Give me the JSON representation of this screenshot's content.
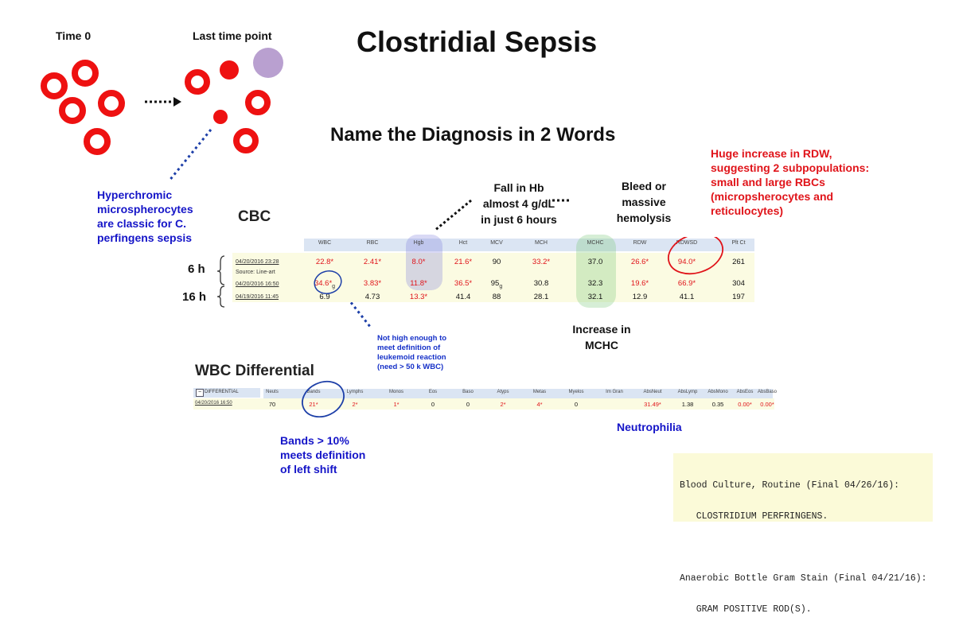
{
  "title": "Clostridial Sepsis",
  "subtitle": "Name the Diagnosis in 2 Words",
  "time_labels": {
    "start": "Time 0",
    "end": "Last time point"
  },
  "notes": {
    "hyperchromic": [
      "Hyperchromic",
      "microspherocytes",
      "are classic for C.",
      "perfingens sepsis"
    ],
    "hb_fall": [
      "Fall in Hb",
      "almost 4 g/dL",
      "in just 6 hours"
    ],
    "bleed": [
      "Bleed or",
      "massive",
      "hemolysis"
    ],
    "rdw": [
      "Huge increase in RDW,",
      "suggesting 2 subpopulations:",
      "small and large RBCs",
      "(micropsherocytes and",
      "reticulocytes)"
    ],
    "mchc": [
      "Increase in",
      "MCHC"
    ],
    "leukemoid": [
      "Not high enough to",
      "meet definition of",
      "leukemoid reaction",
      "(need > 50 k WBC)"
    ],
    "bands": [
      "Bands > 10%",
      "meets definition",
      "of left shift"
    ],
    "neutrophilia": "Neutrophilia"
  },
  "cbc": {
    "section_label": "CBC",
    "row_labels": [
      "6 h",
      "16 h"
    ],
    "headers": [
      "WBC",
      "RBC",
      "Hgb",
      "Hct",
      "MCV",
      "MCH",
      "MCHC",
      "RDW",
      "RDWSD",
      "Plt Ct"
    ],
    "rows": [
      {
        "datetime": "04/20/2016 23:28",
        "source": "Source: Line-art",
        "values": [
          "22.8*",
          "2.41*",
          "8.0*",
          "21.6*",
          "90",
          "33.2*",
          "37.0",
          "26.6*",
          "94.0*",
          "261"
        ],
        "flags": [
          true,
          true,
          true,
          true,
          false,
          true,
          false,
          true,
          true,
          false
        ]
      },
      {
        "datetime": "04/20/2016 16:50",
        "values": [
          "34.6*",
          "3.83*",
          "11.8*",
          "36.5*",
          "95",
          "30.8",
          "32.3",
          "19.6*",
          "66.9*",
          "304"
        ],
        "flags": [
          true,
          true,
          true,
          true,
          false,
          false,
          false,
          true,
          true,
          false
        ]
      },
      {
        "datetime": "04/19/2016 11:45",
        "values": [
          "6.9",
          "4.73",
          "13.3*",
          "41.4",
          "88",
          "28.1",
          "32.1",
          "12.9",
          "41.1",
          "197"
        ],
        "flags": [
          false,
          false,
          true,
          false,
          false,
          false,
          false,
          false,
          false,
          false
        ]
      }
    ],
    "marks": {
      "wbc_suffix": "g",
      "mcv_suffix": "g"
    }
  },
  "differential": {
    "section_label": "WBC Differential",
    "toggle_label": "DIFFERENTIAL",
    "toggle_symbol": "−",
    "datetime": "04/20/2016 16:50",
    "headers": [
      "Neuts",
      "Bands",
      "Lymphs",
      "Monos",
      "Eos",
      "Baso",
      "Atyps",
      "Metas",
      "Myelos",
      "Im Gran",
      "AbsNeut",
      "AbsLymp",
      "AbsMono",
      "AbsEos",
      "AbsBaso"
    ],
    "values": [
      "70",
      "21*",
      "2*",
      "1*",
      "0",
      "0",
      "2*",
      "4*",
      "0",
      "",
      "31.49*",
      "1.38",
      "0.35",
      "0.00*",
      "0.00*"
    ],
    "flags": [
      false,
      true,
      true,
      true,
      false,
      false,
      true,
      true,
      false,
      false,
      true,
      false,
      false,
      true,
      true
    ]
  },
  "culture": {
    "lines": [
      "Blood Culture, Routine (Final 04/26/16):",
      "   CLOSTRIDIUM PERFRINGENS.",
      "",
      "Anaerobic Bottle Gram Stain (Final 04/21/16):",
      "   GRAM POSITIVE ROD(S)."
    ]
  },
  "colors": {
    "rbc_red": "#ee1111",
    "spherocyte_purple": "#b9a0d0",
    "blue_text": "#1515c8",
    "red_text": "#e0141a",
    "header_blue": "#dbe5f3",
    "row_yellow": "#fbfbe2"
  }
}
